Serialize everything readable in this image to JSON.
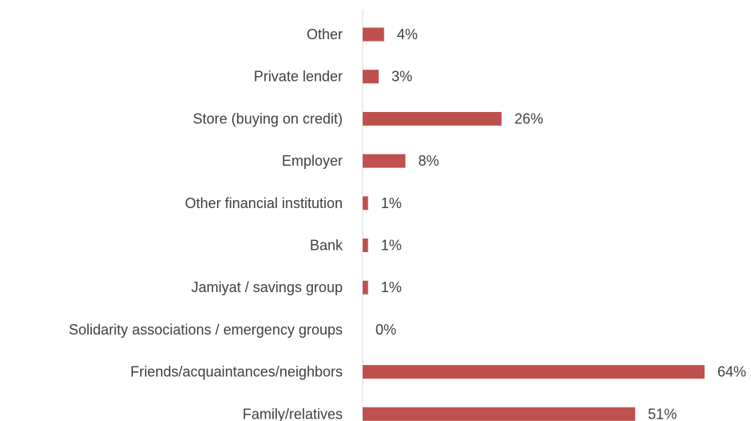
{
  "chart_data": {
    "type": "bar",
    "orientation": "horizontal",
    "categories": [
      "Other",
      "Private lender",
      "Store (buying on credit)",
      "Employer",
      "Other financial institution",
      "Bank",
      "Jamiyat / savings group",
      "Solidarity associations / emergency groups",
      "Friends/acquaintances/neighbors",
      "Family/relatives"
    ],
    "values": [
      4,
      3,
      26,
      8,
      1,
      1,
      1,
      0,
      64,
      51
    ],
    "value_labels": [
      "4%",
      "3%",
      "26%",
      "8%",
      "1%",
      "1%",
      "1%",
      "0%",
      "64%",
      "51%"
    ],
    "unit": "%",
    "xlim": [
      0,
      64
    ],
    "grid": false,
    "legend": "none",
    "bar_color": "#C0504D"
  }
}
